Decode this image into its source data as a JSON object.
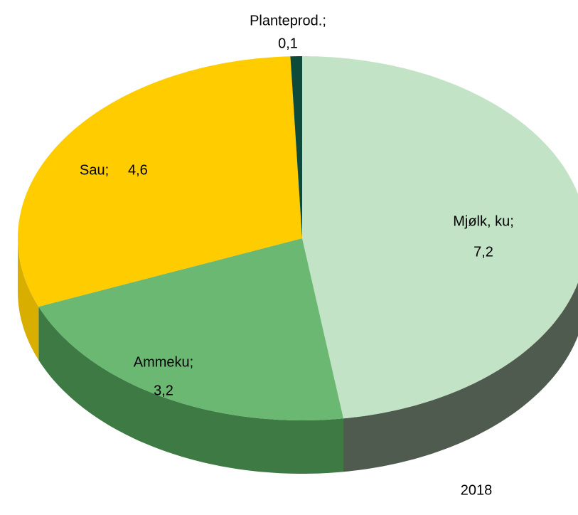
{
  "chart_data": {
    "type": "pie3d",
    "subtitle": "2018",
    "categories": [
      "Mjølk, ku;",
      "Ammeku;",
      "Sau;",
      "Planteprod.;"
    ],
    "values": [
      7.2,
      3.2,
      4.6,
      0.1
    ],
    "value_labels": [
      "7,2",
      "3,2",
      "4,6",
      "0,1"
    ],
    "colors": [
      "#c3e3c6",
      "#6ab872",
      "#ffcc00",
      "#0d4a3a"
    ],
    "side_colors": [
      "#4f5b4f",
      "#3d7a44",
      "#d8ae00",
      "#0a3a2d"
    ]
  }
}
